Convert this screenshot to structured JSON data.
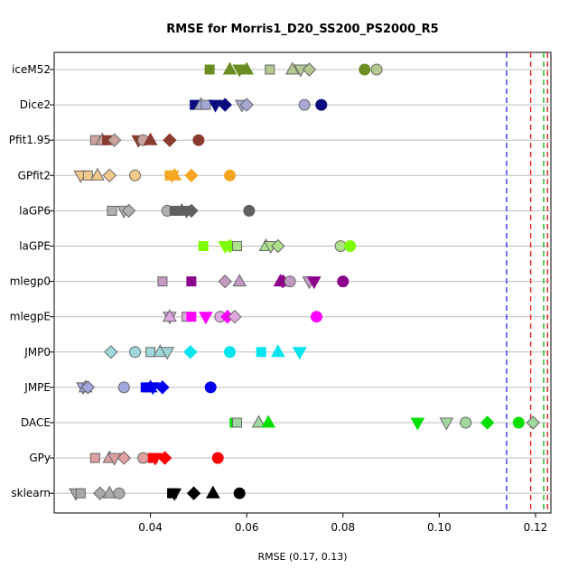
{
  "chart_data": {
    "type": "scatter",
    "title": "RMSE for Morris1_D20_SS200_PS2000_R5",
    "xlabel": "RMSE (0.17, 0.13)",
    "ylabel": "",
    "xlim": [
      0.02,
      0.1232
    ],
    "x_ticks": [
      0.04,
      0.06,
      0.08,
      0.1,
      0.12
    ],
    "x_tick_labels": [
      "0.04",
      "0.06",
      "0.08",
      "0.10",
      "0.12"
    ],
    "grid": "horizontal lines at each category",
    "categories": [
      "iceM52",
      "Dice2",
      "Pfit1.95",
      "GPfit2",
      "laGP6",
      "laGPE",
      "mlegp0",
      "mlegpE",
      "JMP0",
      "JMPE",
      "DACE",
      "GPy",
      "sklearn"
    ],
    "reference_lines": [
      {
        "x": 0.114,
        "color": "#3333ff",
        "style": "dashed"
      },
      {
        "x": 0.119,
        "color": "#ee2222",
        "style": "dashed"
      },
      {
        "x": 0.1217,
        "color": "#22aa22",
        "style": "dashed"
      },
      {
        "x": 0.1225,
        "color": "#ee2222",
        "style": "dashed"
      }
    ],
    "series": [
      {
        "category": "iceM52",
        "color": "#6b8e23",
        "light": "#b3c98f",
        "points": [
          {
            "x": 0.0523,
            "shape": "square",
            "filled": true
          },
          {
            "x": 0.0565,
            "shape": "triangle-up",
            "filled": true
          },
          {
            "x": 0.0585,
            "shape": "triangle-down",
            "filled": true
          },
          {
            "x": 0.06,
            "shape": "triangle-up",
            "filled": true
          },
          {
            "x": 0.0648,
            "shape": "square",
            "filled": false
          },
          {
            "x": 0.0695,
            "shape": "triangle-up",
            "filled": false
          },
          {
            "x": 0.0712,
            "shape": "triangle-down",
            "filled": false
          },
          {
            "x": 0.073,
            "shape": "diamond",
            "filled": false
          },
          {
            "x": 0.0845,
            "shape": "circle",
            "filled": true
          },
          {
            "x": 0.087,
            "shape": "circle",
            "filled": false
          }
        ]
      },
      {
        "category": "Dice2",
        "color": "#0b0b80",
        "light": "#a7a9d4",
        "points": [
          {
            "x": 0.0492,
            "shape": "square",
            "filled": true
          },
          {
            "x": 0.0505,
            "shape": "triangle-up",
            "filled": false
          },
          {
            "x": 0.0515,
            "shape": "square",
            "filled": false
          },
          {
            "x": 0.0535,
            "shape": "triangle-down",
            "filled": true
          },
          {
            "x": 0.0555,
            "shape": "diamond",
            "filled": true
          },
          {
            "x": 0.059,
            "shape": "triangle-down",
            "filled": false
          },
          {
            "x": 0.06,
            "shape": "diamond",
            "filled": false
          },
          {
            "x": 0.072,
            "shape": "circle",
            "filled": false
          },
          {
            "x": 0.0755,
            "shape": "circle",
            "filled": true
          }
        ]
      },
      {
        "category": "Pfit1.95",
        "color": "#8b3a2f",
        "light": "#c9a29b",
        "points": [
          {
            "x": 0.0285,
            "shape": "square",
            "filled": false
          },
          {
            "x": 0.03,
            "shape": "triangle-up",
            "filled": false
          },
          {
            "x": 0.031,
            "shape": "square",
            "filled": true
          },
          {
            "x": 0.0325,
            "shape": "diamond",
            "filled": false
          },
          {
            "x": 0.0375,
            "shape": "triangle-down",
            "filled": true
          },
          {
            "x": 0.0385,
            "shape": "circle",
            "filled": false
          },
          {
            "x": 0.04,
            "shape": "triangle-up",
            "filled": true
          },
          {
            "x": 0.044,
            "shape": "diamond",
            "filled": true
          },
          {
            "x": 0.05,
            "shape": "circle",
            "filled": true
          }
        ]
      },
      {
        "category": "GPfit2",
        "color": "#f5a623",
        "light": "#f2c98a",
        "points": [
          {
            "x": 0.0255,
            "shape": "triangle-down",
            "filled": false
          },
          {
            "x": 0.027,
            "shape": "square",
            "filled": false
          },
          {
            "x": 0.029,
            "shape": "triangle-up",
            "filled": false
          },
          {
            "x": 0.0315,
            "shape": "diamond",
            "filled": false
          },
          {
            "x": 0.0368,
            "shape": "circle",
            "filled": false
          },
          {
            "x": 0.044,
            "shape": "square",
            "filled": true
          },
          {
            "x": 0.045,
            "shape": "triangle-up",
            "filled": true
          },
          {
            "x": 0.0445,
            "shape": "triangle-down",
            "filled": true
          },
          {
            "x": 0.0485,
            "shape": "diamond",
            "filled": true
          },
          {
            "x": 0.0565,
            "shape": "circle",
            "filled": true
          }
        ]
      },
      {
        "category": "laGP6",
        "color": "#606060",
        "light": "#b0b0b0",
        "points": [
          {
            "x": 0.032,
            "shape": "square",
            "filled": false
          },
          {
            "x": 0.0345,
            "shape": "triangle-down",
            "filled": false
          },
          {
            "x": 0.0355,
            "shape": "diamond",
            "filled": false
          },
          {
            "x": 0.0435,
            "shape": "circle",
            "filled": false
          },
          {
            "x": 0.045,
            "shape": "square",
            "filled": true
          },
          {
            "x": 0.0465,
            "shape": "triangle-up",
            "filled": true
          },
          {
            "x": 0.0475,
            "shape": "triangle-down",
            "filled": true
          },
          {
            "x": 0.0485,
            "shape": "diamond",
            "filled": true
          },
          {
            "x": 0.0605,
            "shape": "circle",
            "filled": true
          }
        ]
      },
      {
        "category": "laGPE",
        "color": "#7cfc00",
        "light": "#aee08a",
        "points": [
          {
            "x": 0.051,
            "shape": "square",
            "filled": true
          },
          {
            "x": 0.0555,
            "shape": "triangle-down",
            "filled": true
          },
          {
            "x": 0.0565,
            "shape": "diamond",
            "filled": true
          },
          {
            "x": 0.058,
            "shape": "square",
            "filled": false
          },
          {
            "x": 0.064,
            "shape": "triangle-up",
            "filled": false
          },
          {
            "x": 0.065,
            "shape": "triangle-down",
            "filled": false
          },
          {
            "x": 0.0665,
            "shape": "diamond",
            "filled": false
          },
          {
            "x": 0.0795,
            "shape": "circle",
            "filled": false
          },
          {
            "x": 0.0815,
            "shape": "circle",
            "filled": true
          }
        ]
      },
      {
        "category": "mlegp0",
        "color": "#8b008b",
        "light": "#c39ac3",
        "points": [
          {
            "x": 0.0425,
            "shape": "square",
            "filled": false
          },
          {
            "x": 0.0485,
            "shape": "square",
            "filled": true
          },
          {
            "x": 0.0555,
            "shape": "diamond",
            "filled": false
          },
          {
            "x": 0.0585,
            "shape": "triangle-up",
            "filled": false
          },
          {
            "x": 0.067,
            "shape": "triangle-up",
            "filled": true
          },
          {
            "x": 0.0675,
            "shape": "diamond",
            "filled": true
          },
          {
            "x": 0.069,
            "shape": "circle",
            "filled": false
          },
          {
            "x": 0.073,
            "shape": "triangle-down",
            "filled": false
          },
          {
            "x": 0.074,
            "shape": "triangle-down",
            "filled": true
          },
          {
            "x": 0.08,
            "shape": "circle",
            "filled": true
          }
        ]
      },
      {
        "category": "mlegpE",
        "color": "#ff00ff",
        "light": "#e0a8e0",
        "points": [
          {
            "x": 0.044,
            "shape": "triangle-down",
            "filled": false
          },
          {
            "x": 0.044,
            "shape": "triangle-up",
            "filled": false
          },
          {
            "x": 0.0475,
            "shape": "square",
            "filled": false
          },
          {
            "x": 0.0485,
            "shape": "square",
            "filled": true
          },
          {
            "x": 0.0515,
            "shape": "triangle-down",
            "filled": true
          },
          {
            "x": 0.0545,
            "shape": "circle",
            "filled": false
          },
          {
            "x": 0.056,
            "shape": "diamond",
            "filled": true
          },
          {
            "x": 0.0575,
            "shape": "diamond",
            "filled": false
          },
          {
            "x": 0.0745,
            "shape": "circle",
            "filled": true
          }
        ]
      },
      {
        "category": "JMP0",
        "color": "#00e5ee",
        "light": "#9ed8db",
        "points": [
          {
            "x": 0.0318,
            "shape": "diamond",
            "filled": false
          },
          {
            "x": 0.0368,
            "shape": "circle",
            "filled": false
          },
          {
            "x": 0.04,
            "shape": "square",
            "filled": false
          },
          {
            "x": 0.042,
            "shape": "triangle-up",
            "filled": false
          },
          {
            "x": 0.0435,
            "shape": "triangle-down",
            "filled": false
          },
          {
            "x": 0.0483,
            "shape": "diamond",
            "filled": true
          },
          {
            "x": 0.0565,
            "shape": "circle",
            "filled": true
          },
          {
            "x": 0.063,
            "shape": "square",
            "filled": true
          },
          {
            "x": 0.0665,
            "shape": "triangle-up",
            "filled": true
          },
          {
            "x": 0.071,
            "shape": "triangle-down",
            "filled": true
          }
        ]
      },
      {
        "category": "JMPE",
        "color": "#0000ee",
        "light": "#a0a8e0",
        "points": [
          {
            "x": 0.026,
            "shape": "triangle-down",
            "filled": false
          },
          {
            "x": 0.0265,
            "shape": "triangle-up",
            "filled": false
          },
          {
            "x": 0.027,
            "shape": "diamond",
            "filled": false
          },
          {
            "x": 0.0345,
            "shape": "circle",
            "filled": false
          },
          {
            "x": 0.039,
            "shape": "square",
            "filled": true
          },
          {
            "x": 0.04,
            "shape": "triangle-up",
            "filled": true
          },
          {
            "x": 0.0405,
            "shape": "triangle-down",
            "filled": true
          },
          {
            "x": 0.0425,
            "shape": "diamond",
            "filled": true
          },
          {
            "x": 0.0525,
            "shape": "circle",
            "filled": true
          }
        ]
      },
      {
        "category": "DACE",
        "color": "#00e000",
        "light": "#9fd79f",
        "points": [
          {
            "x": 0.0575,
            "shape": "square",
            "filled": true
          },
          {
            "x": 0.058,
            "shape": "square",
            "filled": false
          },
          {
            "x": 0.0625,
            "shape": "triangle-up",
            "filled": false
          },
          {
            "x": 0.0645,
            "shape": "triangle-up",
            "filled": true
          },
          {
            "x": 0.0955,
            "shape": "triangle-down",
            "filled": true
          },
          {
            "x": 0.1015,
            "shape": "triangle-down",
            "filled": false
          },
          {
            "x": 0.1055,
            "shape": "circle",
            "filled": false
          },
          {
            "x": 0.11,
            "shape": "diamond",
            "filled": true
          },
          {
            "x": 0.1165,
            "shape": "circle",
            "filled": true
          },
          {
            "x": 0.1195,
            "shape": "diamond",
            "filled": false
          }
        ]
      },
      {
        "category": "GPy",
        "color": "#ff0000",
        "light": "#e0a0a0",
        "points": [
          {
            "x": 0.0285,
            "shape": "square",
            "filled": false
          },
          {
            "x": 0.0315,
            "shape": "triangle-up",
            "filled": false
          },
          {
            "x": 0.0325,
            "shape": "triangle-down",
            "filled": false
          },
          {
            "x": 0.0345,
            "shape": "diamond",
            "filled": false
          },
          {
            "x": 0.0385,
            "shape": "circle",
            "filled": false
          },
          {
            "x": 0.0405,
            "shape": "square",
            "filled": true
          },
          {
            "x": 0.041,
            "shape": "triangle-down",
            "filled": true
          },
          {
            "x": 0.043,
            "shape": "diamond",
            "filled": true
          },
          {
            "x": 0.054,
            "shape": "circle",
            "filled": true
          }
        ]
      },
      {
        "category": "sklearn",
        "color": "#000000",
        "light": "#aaaaaa",
        "points": [
          {
            "x": 0.0245,
            "shape": "triangle-down",
            "filled": false
          },
          {
            "x": 0.0255,
            "shape": "square",
            "filled": false
          },
          {
            "x": 0.0295,
            "shape": "diamond",
            "filled": false
          },
          {
            "x": 0.0315,
            "shape": "triangle-up",
            "filled": false
          },
          {
            "x": 0.0335,
            "shape": "circle",
            "filled": false
          },
          {
            "x": 0.0445,
            "shape": "square",
            "filled": true
          },
          {
            "x": 0.045,
            "shape": "triangle-down",
            "filled": true
          },
          {
            "x": 0.049,
            "shape": "diamond",
            "filled": true
          },
          {
            "x": 0.053,
            "shape": "triangle-up",
            "filled": true
          },
          {
            "x": 0.0585,
            "shape": "circle",
            "filled": true
          }
        ]
      }
    ]
  }
}
